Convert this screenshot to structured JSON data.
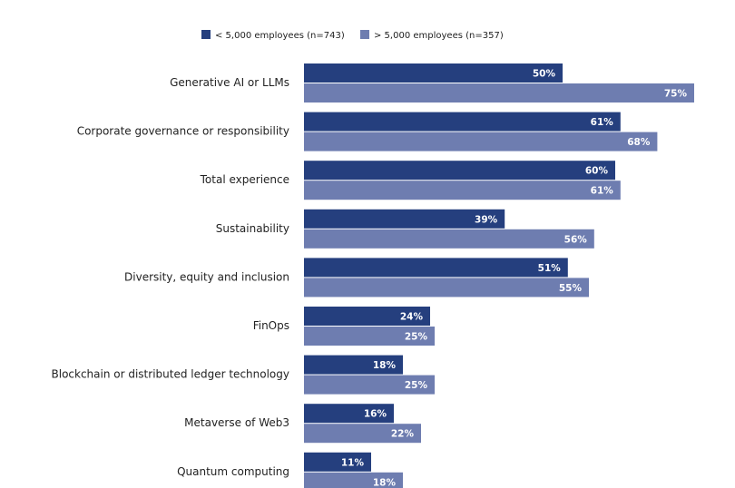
{
  "chart_data": {
    "type": "bar",
    "orientation": "horizontal",
    "categories": [
      "Generative AI or LLMs",
      "Corporate governance or responsibility",
      "Total experience",
      "Sustainability",
      "Diversity, equity and inclusion",
      "FinOps",
      "Blockchain or distributed ledger technology",
      "Metaverse of Web3",
      "Quantum computing"
    ],
    "series": [
      {
        "name": "< 5,000 employees (n=743)",
        "color": "#253f7e",
        "values": [
          50,
          61,
          60,
          39,
          51,
          24,
          18,
          16,
          11
        ]
      },
      {
        "name": "> 5,000 employees (n=357)",
        "color": "#6e7db0",
        "values": [
          75,
          68,
          61,
          56,
          55,
          25,
          25,
          22,
          18
        ]
      }
    ],
    "value_suffix": "%",
    "legend": "top-center",
    "grid": false,
    "xlim": [
      0,
      75
    ]
  }
}
